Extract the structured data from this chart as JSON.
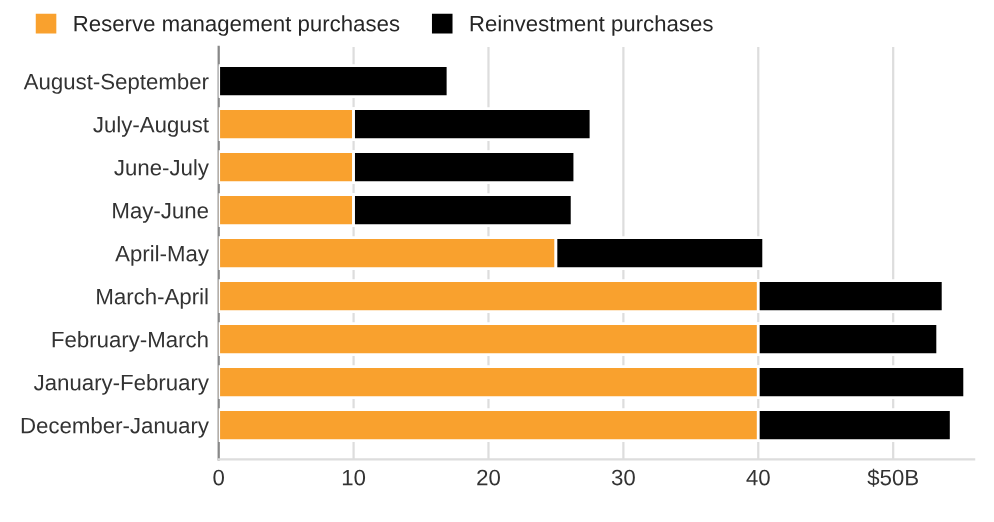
{
  "chart_data": {
    "type": "bar",
    "orientation": "horizontal",
    "stacked": true,
    "categories": [
      "August-September",
      "July-August",
      "June-July",
      "May-June",
      "April-May",
      "March-April",
      "February-March",
      "January-February",
      "December-January"
    ],
    "series": [
      {
        "name": "Reserve management purchases",
        "color": "#f9a12e",
        "values": [
          0,
          10,
          10,
          10,
          25,
          40,
          40,
          40,
          40
        ]
      },
      {
        "name": "Reinvestment purchases",
        "color": "#000000",
        "values": [
          17,
          17.6,
          16.4,
          16.2,
          15.4,
          13.7,
          13.3,
          15.3,
          14.3
        ]
      }
    ],
    "xlim": [
      0,
      56
    ],
    "xticks": [
      0,
      10,
      20,
      30,
      40,
      {
        "value": 50,
        "label": "$50B"
      }
    ],
    "grid": "x",
    "legend": "top left"
  }
}
